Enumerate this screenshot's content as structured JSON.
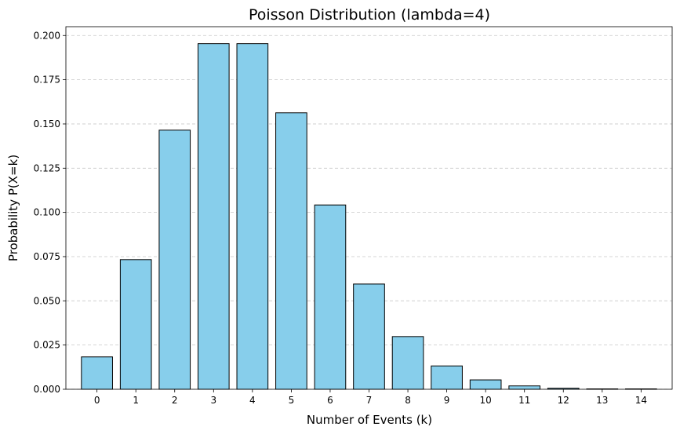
{
  "chart_data": {
    "type": "bar",
    "title": "Poisson Distribution (lambda=4)",
    "xlabel": "Number of Events (k)",
    "ylabel": "Probability P(X=k)",
    "categories": [
      "0",
      "1",
      "2",
      "3",
      "4",
      "5",
      "6",
      "7",
      "8",
      "9",
      "10",
      "11",
      "12",
      "13",
      "14"
    ],
    "values": [
      0.0183,
      0.0733,
      0.1465,
      0.1954,
      0.1954,
      0.1563,
      0.1042,
      0.0595,
      0.0298,
      0.0132,
      0.0053,
      0.0019,
      0.0006,
      0.0002,
      0.0001
    ],
    "ylim": [
      0,
      0.205
    ],
    "yticks": [
      "0.000",
      "0.025",
      "0.050",
      "0.075",
      "0.100",
      "0.125",
      "0.150",
      "0.175",
      "0.200"
    ],
    "grid": "y-dashed",
    "bar_color": "#87CEEB",
    "edge_color": "#000000",
    "grid_color": "#c8c8c8"
  }
}
